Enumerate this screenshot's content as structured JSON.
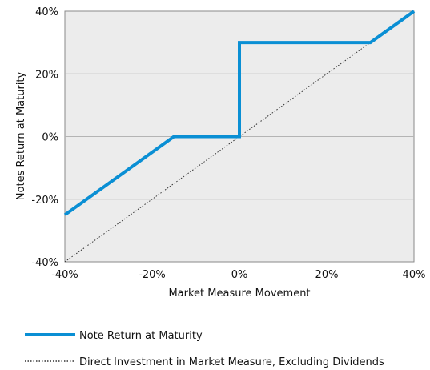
{
  "chart_data": {
    "type": "line",
    "title": "",
    "xlabel": "Market Measure Movement",
    "ylabel": "Notes Return at Maturity",
    "xlim": [
      -40,
      40
    ],
    "ylim": [
      -40,
      40
    ],
    "x_ticks": [
      "-40%",
      "-20%",
      "0%",
      "20%",
      "40%"
    ],
    "y_ticks": [
      "40%",
      "20%",
      "0%",
      "-20%",
      "-40%"
    ],
    "grid": "horizontal",
    "legend_position": "bottom-left",
    "series": [
      {
        "name": "Note Return at Maturity",
        "style": "solid",
        "color": "#0a8fd4",
        "x": [
          -40,
          -15,
          0,
          0,
          30,
          40
        ],
        "y": [
          -25,
          0,
          0,
          30,
          30,
          40
        ]
      },
      {
        "name": "Direct Investment in Market Measure, Excluding Dividends",
        "style": "dotted",
        "color": "#333333",
        "x": [
          -40,
          40
        ],
        "y": [
          -40,
          40
        ]
      }
    ]
  }
}
